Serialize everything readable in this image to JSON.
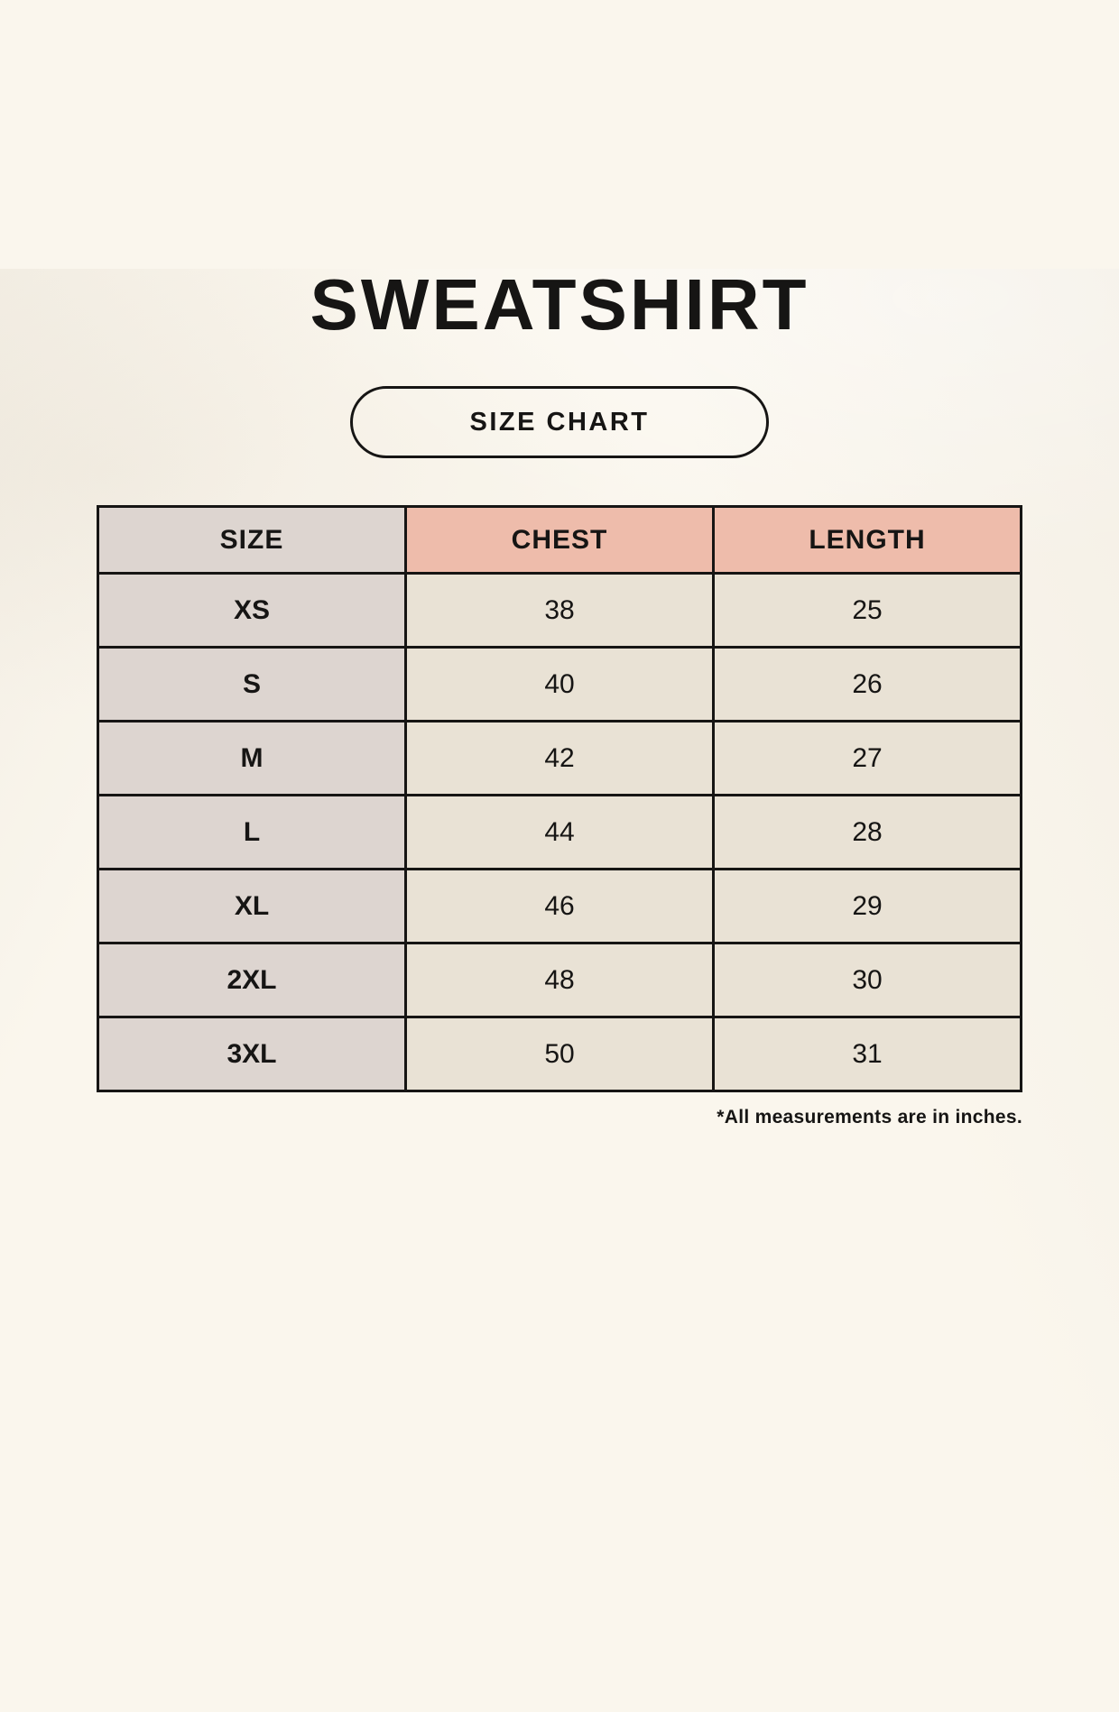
{
  "page": {
    "title": "SWEATSHIRT",
    "badge_label": "SIZE CHART",
    "footnote": "*All measurements are in inches."
  },
  "colors": {
    "bg": "#faf6ed",
    "cell-gray": "#ddd5d0",
    "cell-pink": "#eebcab",
    "cell-beige": "#e9e2d5",
    "ink": "#161514"
  },
  "chart_data": {
    "type": "table",
    "title": "SWEATSHIRT size chart",
    "columns": [
      "SIZE",
      "CHEST",
      "LENGTH"
    ],
    "units": "inches",
    "rows": [
      [
        "XS",
        "38",
        "25"
      ],
      [
        "S",
        "40",
        "26"
      ],
      [
        "M",
        "42",
        "27"
      ],
      [
        "L",
        "44",
        "28"
      ],
      [
        "XL",
        "46",
        "29"
      ],
      [
        "2XL",
        "48",
        "30"
      ],
      [
        "3XL",
        "50",
        "31"
      ]
    ]
  }
}
